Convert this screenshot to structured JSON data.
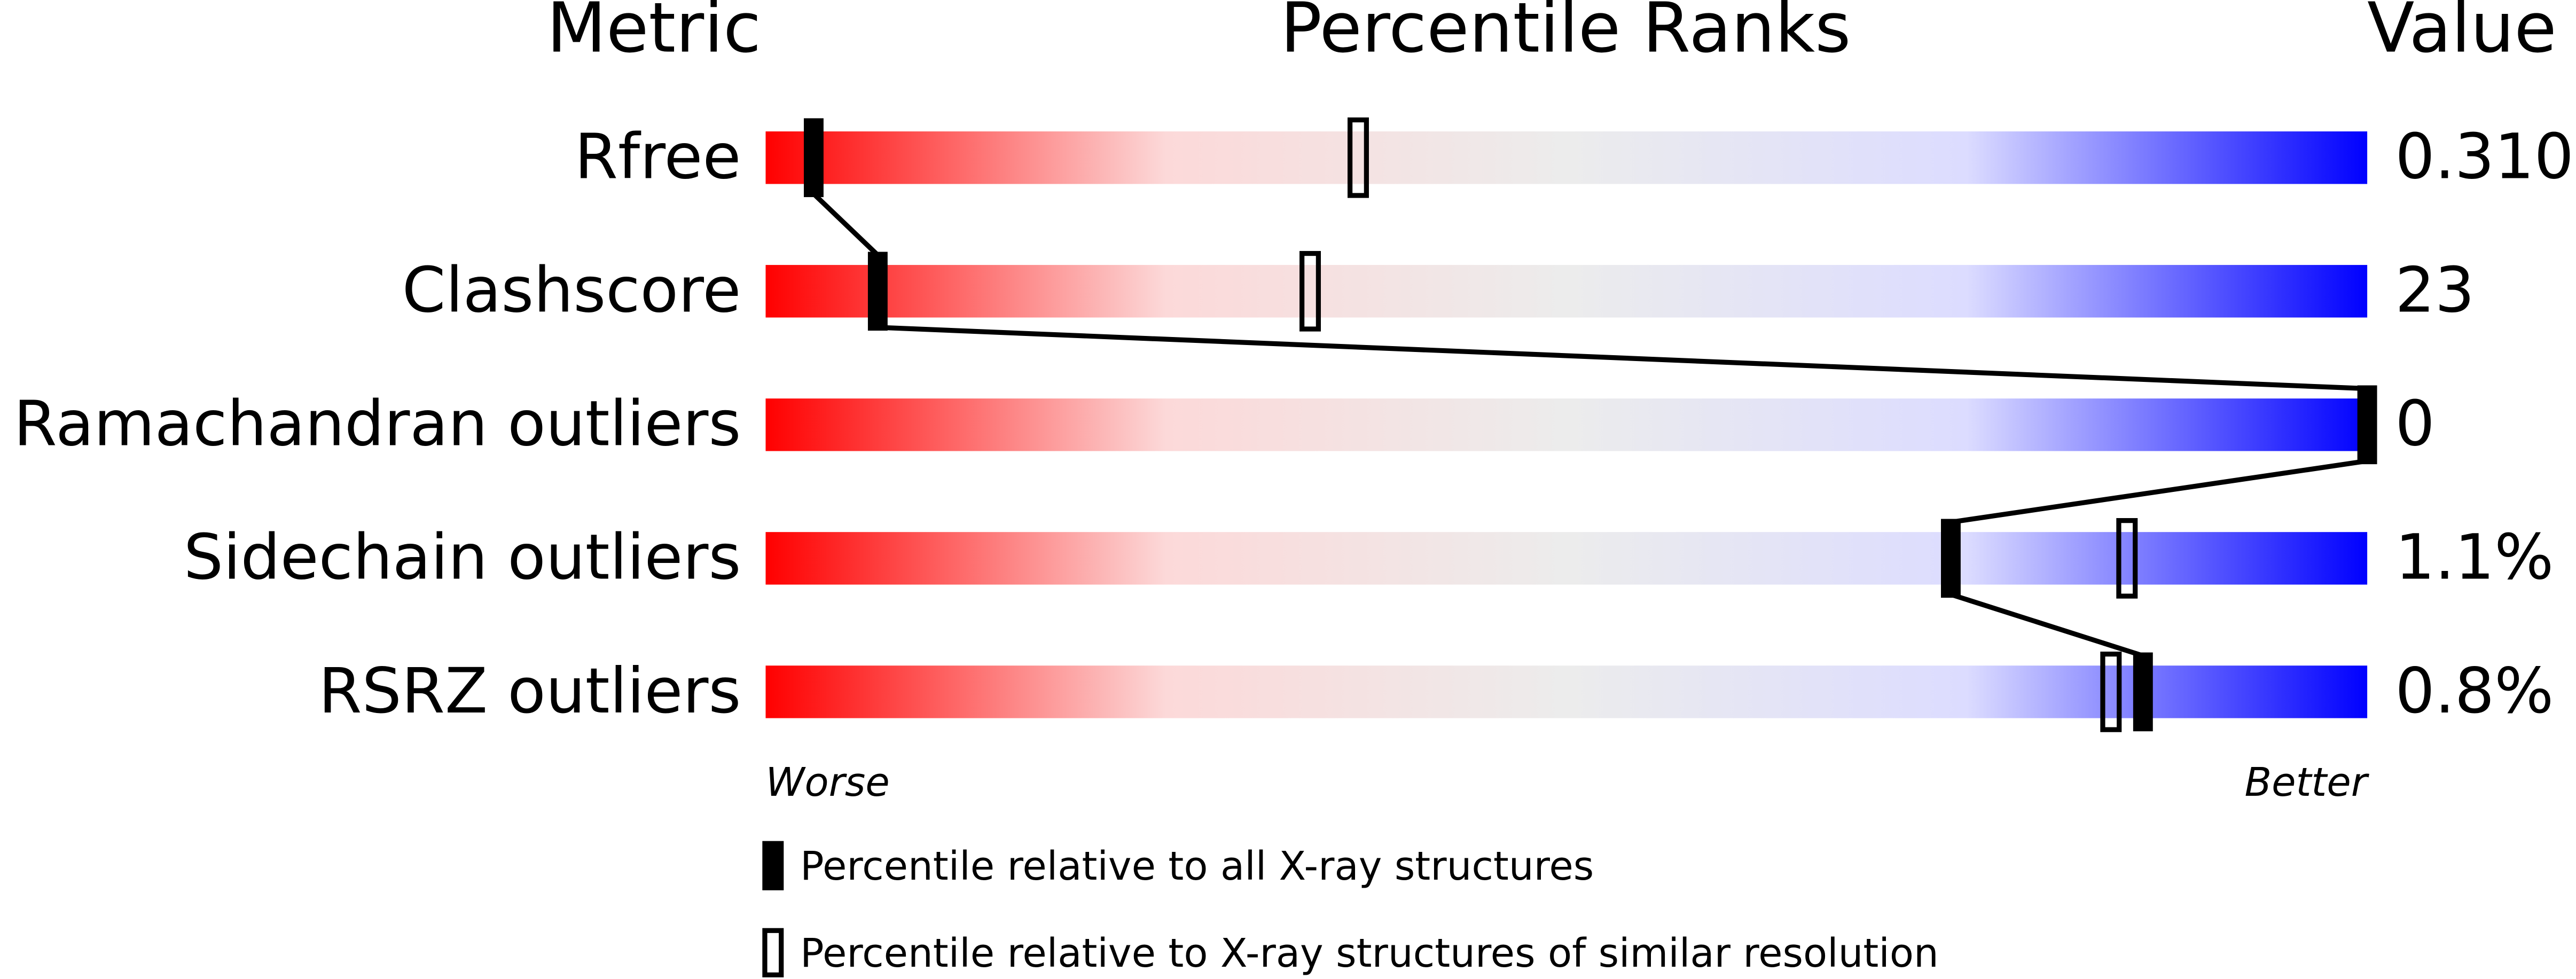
{
  "chart_data": {
    "type": "percentile",
    "headers": [
      "Metric",
      "Percentile Ranks",
      "Value"
    ],
    "categories": [
      "Rfree",
      "Clashscore",
      "Ramachandran outliers",
      "Sidechain outliers",
      "RSRZ outliers"
    ],
    "metric_values": [
      "0.310",
      "23",
      "0",
      "1.1%",
      "0.8%"
    ],
    "series": [
      {
        "name": "Percentile relative to all X-ray structures",
        "color": "#000000",
        "style": "filled",
        "values": [
          3,
          7,
          100,
          74,
          86
        ]
      },
      {
        "name": "Percentile relative to X-ray structures of similar resolution",
        "color": "#000000",
        "style": "open",
        "values": [
          37,
          34,
          null,
          85,
          84
        ]
      }
    ],
    "xlim": [
      0,
      100
    ],
    "x_low_label": "Worse",
    "x_high_label": "Better",
    "gradient": [
      "#ff0000",
      "#fcd9d9",
      "#ececec",
      "#dcdcff",
      "#0000ff"
    ]
  }
}
